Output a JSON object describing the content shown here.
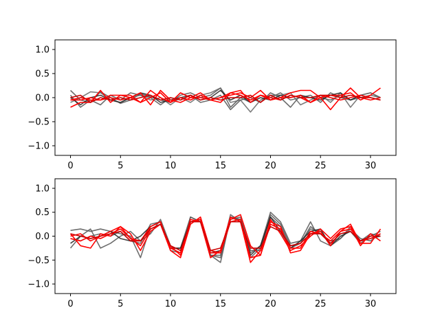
{
  "figure": {
    "background": "#ffffff"
  },
  "chart_data": [
    {
      "type": "line",
      "title": "",
      "xlabel": "",
      "ylabel": "",
      "xlim": [
        -1.55,
        32.55
      ],
      "ylim": [
        -1.2,
        1.2
      ],
      "xticks": [
        0,
        5,
        10,
        15,
        20,
        25,
        30
      ],
      "xtick_labels": [
        "0",
        "5",
        "10",
        "15",
        "20",
        "25",
        "30"
      ],
      "yticks": [
        1.0,
        0.5,
        0.0,
        -0.5,
        -1.0
      ],
      "ytick_labels": [
        "1.0",
        "0.5",
        "0.0",
        "−0.5",
        "−1.0"
      ],
      "grid": false,
      "legend": "none",
      "series": [
        {
          "color": "#555555",
          "values": [
            0.15,
            -0.05,
            -0.1,
            0.12,
            0.0,
            -0.12,
            -0.05,
            0.08,
            0.02,
            -0.05,
            -0.1,
            0.05,
            0.1,
            0.0,
            0.05,
            0.2,
            -0.2,
            0.0,
            -0.1,
            0.05,
            0.0,
            0.1,
            -0.05,
            0.0,
            0.05,
            -0.1,
            0.1,
            0.0,
            -0.05,
            0.05,
            0.1,
            0.0
          ]
        },
        {
          "color": "#555555",
          "values": [
            0.05,
            -0.2,
            -0.05,
            -0.15,
            0.05,
            -0.05,
            0.1,
            0.05,
            0.0,
            -0.15,
            0.0,
            -0.05,
            0.05,
            -0.1,
            -0.05,
            0.05,
            -0.25,
            -0.05,
            0.0,
            -0.1,
            0.1,
            0.0,
            -0.2,
            0.05,
            -0.1,
            0.0,
            -0.05,
            0.05,
            -0.05,
            0.0,
            0.05,
            0.0
          ]
        },
        {
          "color": "#666666",
          "values": [
            -0.1,
            0.0,
            0.12,
            0.1,
            -0.05,
            -0.1,
            0.0,
            0.05,
            -0.05,
            0.0,
            -0.15,
            0.0,
            -0.1,
            0.05,
            0.1,
            0.2,
            -0.1,
            -0.05,
            -0.3,
            -0.05,
            0.05,
            0.05,
            0.1,
            -0.15,
            -0.05,
            0.05,
            -0.1,
            0.1,
            -0.2,
            0.05,
            0.1,
            0.0
          ]
        },
        {
          "color": "#222222",
          "values": [
            0.0,
            -0.15,
            0.0,
            0.05,
            -0.05,
            -0.1,
            0.0,
            0.1,
            0.05,
            -0.1,
            -0.05,
            0.0,
            0.05,
            -0.05,
            0.0,
            0.15,
            -0.05,
            0.05,
            -0.1,
            0.0,
            -0.05,
            0.05,
            0.0,
            0.05,
            0.0,
            -0.05,
            0.05,
            0.1,
            -0.05,
            0.05,
            0.0,
            -0.05
          ]
        },
        {
          "color": "#ff0000",
          "values": [
            -0.2,
            -0.1,
            -0.1,
            0.15,
            -0.1,
            0.05,
            0.05,
            -0.1,
            0.15,
            0.0,
            -0.1,
            0.1,
            0.0,
            0.1,
            -0.05,
            0.0,
            0.05,
            0.1,
            0.0,
            0.15,
            -0.05,
            0.0,
            0.1,
            0.15,
            0.15,
            0.0,
            0.05,
            0.05,
            0.1,
            -0.05,
            0.05,
            0.2
          ]
        },
        {
          "color": "#ff0000",
          "values": [
            -0.05,
            0.0,
            -0.05,
            -0.05,
            0.05,
            0.05,
            0.0,
            -0.1,
            0.0,
            0.1,
            -0.1,
            0.0,
            -0.05,
            0.05,
            -0.05,
            -0.1,
            0.1,
            0.15,
            -0.1,
            0.05,
            0.0,
            -0.05,
            0.05,
            0.0,
            -0.1,
            0.05,
            0.0,
            -0.05,
            0.0,
            0.05,
            0.0,
            -0.05
          ]
        },
        {
          "color": "#ff0000",
          "values": [
            -0.05,
            -0.05,
            0.0,
            -0.05,
            0.0,
            -0.05,
            0.0,
            0.1,
            -0.15,
            0.15,
            -0.05,
            -0.1,
            0.0,
            0.0,
            -0.05,
            0.0,
            0.1,
            0.05,
            -0.05,
            0.05,
            -0.05,
            0.0,
            0.0,
            0.05,
            -0.1,
            0.0,
            -0.25,
            0.0,
            0.2,
            0.0,
            -0.05,
            0.0
          ]
        },
        {
          "color": "#cc0000",
          "values": [
            0.0,
            0.05,
            -0.1,
            0.0,
            -0.05,
            0.0,
            -0.05,
            0.0,
            0.05,
            -0.05,
            0.0,
            -0.05,
            0.05,
            -0.05,
            0.0,
            -0.05,
            0.0,
            0.0,
            0.05,
            -0.1,
            0.05,
            -0.05,
            0.05,
            0.0,
            0.0,
            0.05,
            0.05,
            0.0,
            0.05,
            0.0,
            0.0,
            -0.05
          ]
        }
      ]
    },
    {
      "type": "line",
      "title": "",
      "xlabel": "",
      "ylabel": "",
      "xlim": [
        -1.55,
        32.55
      ],
      "ylim": [
        -1.2,
        1.2
      ],
      "xticks": [
        0,
        5,
        10,
        15,
        20,
        25,
        30
      ],
      "xtick_labels": [
        "0",
        "5",
        "10",
        "15",
        "20",
        "25",
        "30"
      ],
      "yticks": [
        1.0,
        0.5,
        0.0,
        -0.5,
        -1.0
      ],
      "ytick_labels": [
        "1.0",
        "0.5",
        "0.0",
        "−0.5",
        "−1.0"
      ],
      "grid": false,
      "legend": "none",
      "series": [
        {
          "color": "#555555",
          "values": [
            0.12,
            0.15,
            0.1,
            0.15,
            0.1,
            0.05,
            0.0,
            -0.45,
            0.2,
            0.3,
            -0.25,
            -0.25,
            0.4,
            0.3,
            -0.4,
            -0.55,
            0.4,
            0.35,
            -0.35,
            -0.2,
            0.5,
            0.3,
            -0.15,
            -0.1,
            0.3,
            -0.1,
            -0.2,
            -0.05,
            0.2,
            -0.1,
            0.05,
            0.0
          ]
        },
        {
          "color": "#555555",
          "values": [
            -0.25,
            0.0,
            0.15,
            -0.25,
            -0.15,
            0.0,
            0.1,
            -0.1,
            0.05,
            0.35,
            -0.2,
            -0.3,
            0.3,
            0.35,
            -0.4,
            -0.4,
            0.45,
            0.3,
            -0.45,
            -0.25,
            0.4,
            0.2,
            -0.25,
            -0.15,
            0.15,
            0.1,
            -0.15,
            0.05,
            0.1,
            -0.15,
            0.0,
            0.1
          ]
        },
        {
          "color": "#555555",
          "values": [
            -0.05,
            -0.1,
            0.0,
            0.05,
            0.0,
            0.1,
            -0.1,
            -0.15,
            0.25,
            0.3,
            -0.3,
            -0.35,
            0.4,
            0.3,
            -0.4,
            -0.45,
            0.35,
            0.4,
            -0.3,
            -0.3,
            0.45,
            0.25,
            -0.2,
            -0.15,
            0.2,
            0.05,
            -0.1,
            -0.05,
            0.15,
            -0.05,
            -0.1,
            0.05
          ]
        },
        {
          "color": "#222222",
          "values": [
            -0.15,
            0.0,
            -0.05,
            0.0,
            0.1,
            -0.05,
            -0.1,
            0.0,
            0.2,
            0.3,
            -0.25,
            -0.25,
            0.3,
            0.35,
            -0.35,
            -0.3,
            0.3,
            0.35,
            -0.4,
            -0.2,
            0.4,
            0.1,
            -0.25,
            -0.1,
            0.1,
            0.15,
            -0.2,
            0.0,
            0.1,
            -0.1,
            -0.05,
            0.0
          ]
        },
        {
          "color": "#ff0000",
          "values": [
            0.05,
            -0.2,
            -0.25,
            0.05,
            0.0,
            0.2,
            0.05,
            -0.3,
            0.1,
            0.25,
            -0.2,
            -0.4,
            0.35,
            0.3,
            -0.45,
            -0.3,
            0.4,
            0.3,
            -0.55,
            -0.3,
            0.3,
            0.2,
            -0.35,
            -0.3,
            0.05,
            0.1,
            -0.2,
            0.1,
            0.25,
            -0.15,
            -0.15,
            0.15
          ]
        },
        {
          "color": "#ff0000",
          "values": [
            0.0,
            0.05,
            -0.1,
            0.0,
            0.1,
            0.2,
            -0.05,
            -0.2,
            0.15,
            0.25,
            -0.3,
            -0.45,
            0.25,
            0.4,
            -0.3,
            -0.35,
            0.35,
            0.45,
            -0.2,
            -0.4,
            0.35,
            0.05,
            -0.3,
            -0.2,
            0.0,
            0.15,
            -0.05,
            0.15,
            0.2,
            -0.2,
            0.05,
            -0.1
          ]
        },
        {
          "color": "#ff0000",
          "values": [
            -0.05,
            -0.1,
            0.0,
            -0.05,
            0.05,
            0.15,
            -0.05,
            -0.1,
            0.2,
            0.3,
            -0.25,
            -0.35,
            0.3,
            0.35,
            -0.35,
            -0.35,
            0.3,
            0.35,
            -0.45,
            -0.4,
            0.25,
            0.15,
            -0.25,
            -0.25,
            0.1,
            0.05,
            -0.1,
            0.1,
            0.15,
            -0.1,
            -0.05,
            0.05
          ]
        },
        {
          "color": "#cc0000",
          "values": [
            0.05,
            0.0,
            -0.05,
            0.0,
            0.05,
            0.1,
            -0.1,
            -0.1,
            0.15,
            0.25,
            -0.2,
            -0.3,
            0.3,
            0.3,
            -0.3,
            -0.25,
            0.3,
            0.3,
            -0.25,
            -0.25,
            0.2,
            0.1,
            -0.2,
            -0.15,
            0.05,
            0.05,
            -0.15,
            0.05,
            0.1,
            -0.1,
            0.0,
            0.0
          ]
        }
      ]
    }
  ]
}
